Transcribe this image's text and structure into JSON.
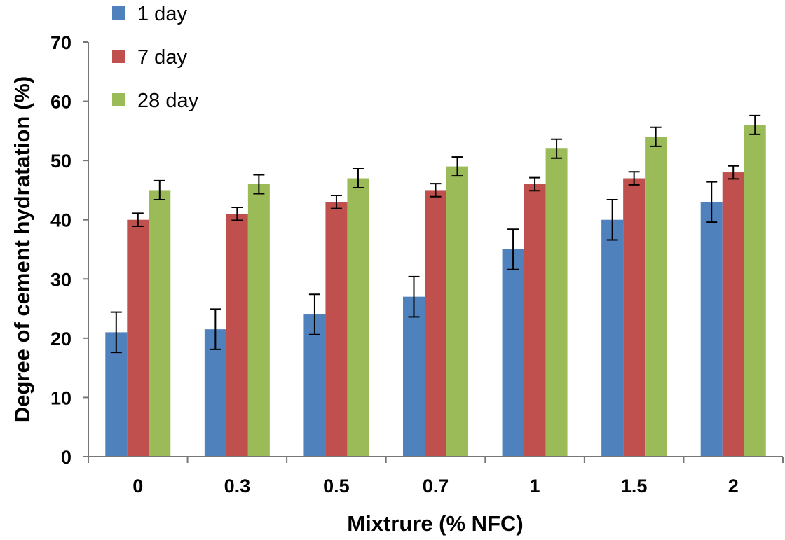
{
  "chart_data": {
    "type": "bar",
    "title": "",
    "xlabel": "Mixtrure (% NFC)",
    "ylabel": "Degree of cement  hydratation (%)",
    "ylim": [
      0,
      70
    ],
    "yticks": [
      0,
      10,
      20,
      30,
      40,
      50,
      60,
      70
    ],
    "grid": false,
    "legend_position": "top-left",
    "categories": [
      "0",
      "0.3",
      "0.5",
      "0.7",
      "1",
      "1.5",
      "2"
    ],
    "series": [
      {
        "name": "1 day",
        "color": "#4f81bd",
        "values": [
          21,
          21.5,
          24,
          27,
          35,
          40,
          43
        ],
        "errors": [
          3.4,
          3.4,
          3.4,
          3.4,
          3.4,
          3.4,
          3.4
        ]
      },
      {
        "name": "7 day",
        "color": "#c0504d",
        "values": [
          40,
          41,
          43,
          45,
          46,
          47,
          48
        ],
        "errors": [
          1.1,
          1.1,
          1.1,
          1.1,
          1.1,
          1.1,
          1.1
        ]
      },
      {
        "name": "28 day",
        "color": "#9bbb59",
        "values": [
          45,
          46,
          47,
          49,
          52,
          54,
          56
        ],
        "errors": [
          1.6,
          1.6,
          1.6,
          1.6,
          1.6,
          1.6,
          1.6
        ]
      }
    ]
  }
}
